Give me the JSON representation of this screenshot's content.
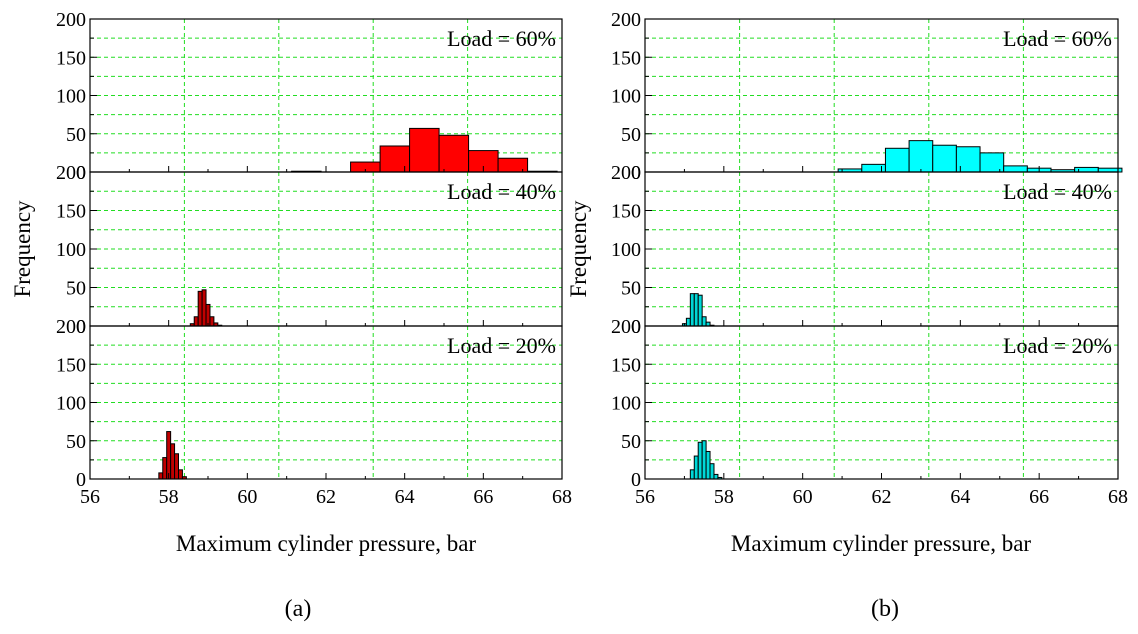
{
  "figure": {
    "panels": [
      {
        "caption": "(a)",
        "xlabel": "Maximum cylinder pressure, bar",
        "ylabel": "Frequency",
        "xlim": [
          56,
          68
        ],
        "xticks": [
          "56",
          "58",
          "60",
          "62",
          "64",
          "66",
          "68"
        ],
        "bar_color": "#ff0000",
        "dark_bar_color": "#c00000",
        "subplots": [
          {
            "label": "Load = 60%",
            "ylim": [
              0,
              200
            ],
            "yticks": [
              "0",
              "50",
              "100",
              "150",
              "200"
            ]
          },
          {
            "label": "Load = 40%",
            "ylim": [
              0,
              200
            ],
            "yticks": [
              "0",
              "50",
              "100",
              "150",
              "200"
            ]
          },
          {
            "label": "Load = 20%",
            "ylim": [
              0,
              200
            ],
            "yticks": [
              "0",
              "50",
              "100",
              "150",
              "200"
            ]
          }
        ]
      },
      {
        "caption": "(b)",
        "xlabel": "Maximum cylinder pressure, bar",
        "ylabel": "Frequency",
        "xlim": [
          56,
          68
        ],
        "xticks": [
          "56",
          "58",
          "60",
          "62",
          "64",
          "66",
          "68"
        ],
        "bar_color": "#00ffff",
        "dark_bar_color": "#00d8d8",
        "subplots": [
          {
            "label": "Load = 60%",
            "ylim": [
              0,
              200
            ],
            "yticks": [
              "0",
              "50",
              "100",
              "150",
              "200"
            ]
          },
          {
            "label": "Load = 40%",
            "ylim": [
              0,
              200
            ],
            "yticks": [
              "0",
              "50",
              "100",
              "150",
              "200"
            ]
          },
          {
            "label": "Load = 20%",
            "ylim": [
              0,
              200
            ],
            "yticks": [
              "0",
              "50",
              "100",
              "150",
              "200"
            ]
          }
        ]
      }
    ]
  },
  "chart_data": [
    {
      "type": "bar",
      "panel": "(a)",
      "subplot": "Load = 60%",
      "xlabel": "Maximum cylinder pressure, bar",
      "ylabel": "Frequency",
      "xlim": [
        56,
        68
      ],
      "ylim": [
        0,
        200
      ],
      "grid": true,
      "bin_width": 0.75,
      "x": [
        61.5,
        63.0,
        63.75,
        64.5,
        65.25,
        66.0,
        66.75,
        67.5
      ],
      "values": [
        1,
        13,
        34,
        57,
        48,
        28,
        18,
        1
      ]
    },
    {
      "type": "bar",
      "panel": "(a)",
      "subplot": "Load = 40%",
      "xlabel": "Maximum cylinder pressure, bar",
      "ylabel": "Frequency",
      "xlim": [
        56,
        68
      ],
      "ylim": [
        0,
        200
      ],
      "grid": true,
      "bin_width": 0.1,
      "x": [
        58.6,
        58.7,
        58.8,
        58.9,
        59.0,
        59.1,
        59.2,
        59.3
      ],
      "values": [
        3,
        12,
        45,
        47,
        28,
        12,
        4,
        1
      ]
    },
    {
      "type": "bar",
      "panel": "(a)",
      "subplot": "Load = 20%",
      "xlabel": "Maximum cylinder pressure, bar",
      "ylabel": "Frequency",
      "xlim": [
        56,
        68
      ],
      "ylim": [
        0,
        200
      ],
      "grid": true,
      "bin_width": 0.1,
      "x": [
        57.8,
        57.9,
        58.0,
        58.1,
        58.2,
        58.3,
        58.4
      ],
      "values": [
        8,
        28,
        62,
        46,
        33,
        12,
        3
      ]
    },
    {
      "type": "bar",
      "panel": "(b)",
      "subplot": "Load = 60%",
      "xlabel": "Maximum cylinder pressure, bar",
      "ylabel": "Frequency",
      "xlim": [
        56,
        68
      ],
      "ylim": [
        0,
        200
      ],
      "grid": true,
      "bin_width": 0.6,
      "x": [
        61.2,
        61.8,
        62.4,
        63.0,
        63.6,
        64.2,
        64.8,
        65.4,
        66.0,
        66.6,
        67.2,
        67.8
      ],
      "values": [
        4,
        10,
        31,
        41,
        35,
        33,
        25,
        8,
        5,
        3,
        6,
        5
      ]
    },
    {
      "type": "bar",
      "panel": "(b)",
      "subplot": "Load = 40%",
      "xlabel": "Maximum cylinder pressure, bar",
      "ylabel": "Frequency",
      "xlim": [
        56,
        68
      ],
      "ylim": [
        0,
        200
      ],
      "grid": true,
      "bin_width": 0.1,
      "x": [
        57.0,
        57.1,
        57.2,
        57.3,
        57.4,
        57.5,
        57.6,
        57.7
      ],
      "values": [
        3,
        10,
        42,
        42,
        40,
        12,
        5,
        1
      ]
    },
    {
      "type": "bar",
      "panel": "(b)",
      "subplot": "Load = 20%",
      "xlabel": "Maximum cylinder pressure, bar",
      "ylabel": "Frequency",
      "xlim": [
        56,
        68
      ],
      "ylim": [
        0,
        200
      ],
      "grid": true,
      "bin_width": 0.1,
      "x": [
        57.2,
        57.3,
        57.4,
        57.5,
        57.6,
        57.7,
        57.8,
        57.9
      ],
      "values": [
        12,
        30,
        48,
        50,
        36,
        20,
        6,
        2
      ]
    }
  ]
}
